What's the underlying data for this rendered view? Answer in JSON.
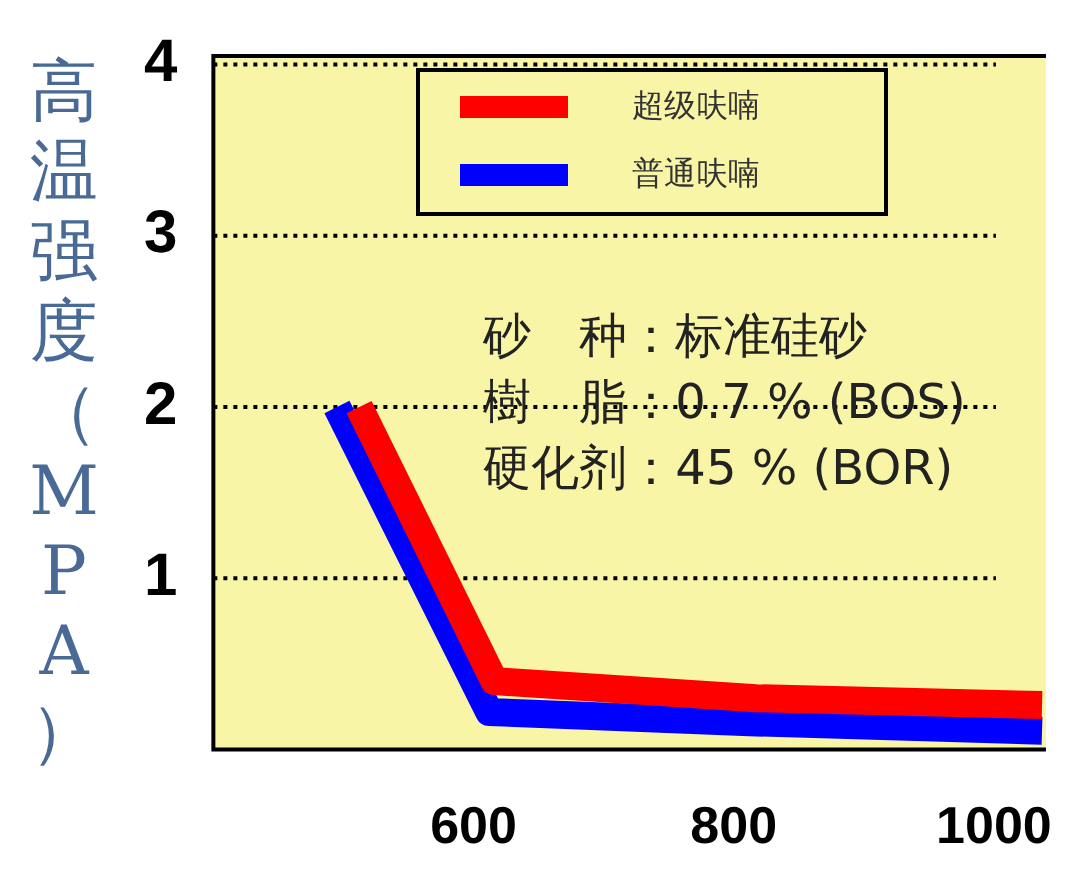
{
  "chart_data": {
    "type": "line",
    "ylabel": "高温强度（MPA）",
    "xlim": [
      400,
      1040
    ],
    "xticks": [
      600,
      800,
      1000
    ],
    "ylim": [
      0,
      4.05
    ],
    "yticks": [
      1,
      2,
      3,
      4
    ],
    "grid": "y",
    "legend": "top right",
    "line_style": "solid",
    "marker": "none",
    "series": [
      {
        "name": "超级呋喃",
        "color": "#ff0000",
        "x": [
          512,
          616,
          817,
          1037
        ],
        "values": [
          2.0,
          0.4,
          0.3,
          0.26
        ]
      },
      {
        "name": "普通呋喃",
        "color": "#0000ff",
        "x": [
          495,
          612,
          812,
          1037
        ],
        "values": [
          2.0,
          0.22,
          0.16,
          0.11
        ]
      }
    ],
    "annotations": [
      "砂　种：标准硅砂",
      "樹　脂：0.7 % (BOS)",
      "硬化剂：45 % (BOR)"
    ]
  }
}
